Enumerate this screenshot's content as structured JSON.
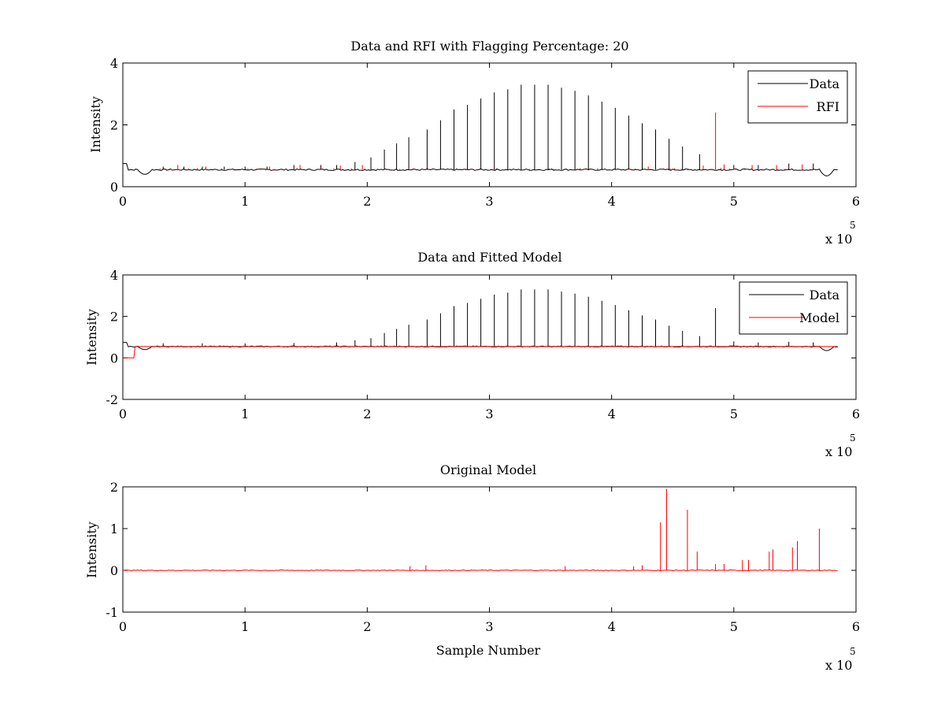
{
  "chart_data": [
    {
      "type": "line",
      "title": "Data and RFI with Flagging Percentage: 20",
      "xlabel": "",
      "ylabel": "Intensity",
      "xlim": [
        0,
        600000
      ],
      "ylim": [
        0,
        4
      ],
      "xticks": [
        "0",
        "1",
        "2",
        "3",
        "4",
        "5",
        "6"
      ],
      "yticks": [
        "0",
        "2",
        "4"
      ],
      "x_multiplier_label": "x 10",
      "x_multiplier_exp": "5",
      "legend": [
        {
          "name": "Data",
          "color": "#000000"
        },
        {
          "name": "RFI",
          "color": "#ff0000"
        }
      ],
      "legend_position": "top-right",
      "baseline": 0.55,
      "x_end": 585000,
      "series": [
        {
          "name": "Data",
          "color": "#000000",
          "spikes": [
            {
              "x": 203000,
              "y": 0.95
            },
            {
              "x": 214000,
              "y": 1.2
            },
            {
              "x": 224000,
              "y": 1.4
            },
            {
              "x": 234000,
              "y": 1.6
            },
            {
              "x": 249000,
              "y": 1.85
            },
            {
              "x": 260000,
              "y": 2.15
            },
            {
              "x": 271000,
              "y": 2.5
            },
            {
              "x": 282000,
              "y": 2.65
            },
            {
              "x": 293000,
              "y": 2.85
            },
            {
              "x": 304000,
              "y": 3.05
            },
            {
              "x": 315000,
              "y": 3.15
            },
            {
              "x": 326000,
              "y": 3.3
            },
            {
              "x": 337000,
              "y": 3.3
            },
            {
              "x": 348000,
              "y": 3.3
            },
            {
              "x": 359000,
              "y": 3.2
            },
            {
              "x": 370000,
              "y": 3.1
            },
            {
              "x": 381000,
              "y": 2.95
            },
            {
              "x": 392000,
              "y": 2.75
            },
            {
              "x": 403000,
              "y": 2.55
            },
            {
              "x": 414000,
              "y": 2.3
            },
            {
              "x": 425000,
              "y": 2.05
            },
            {
              "x": 436000,
              "y": 1.85
            },
            {
              "x": 447000,
              "y": 1.55
            },
            {
              "x": 458000,
              "y": 1.3
            },
            {
              "x": 472000,
              "y": 1.05
            },
            {
              "x": 190000,
              "y": 0.8
            },
            {
              "x": 175000,
              "y": 0.7
            },
            {
              "x": 162000,
              "y": 0.7
            },
            {
              "x": 140000,
              "y": 0.7
            },
            {
              "x": 118000,
              "y": 0.65
            },
            {
              "x": 100000,
              "y": 0.65
            },
            {
              "x": 83000,
              "y": 0.65
            },
            {
              "x": 65000,
              "y": 0.65
            },
            {
              "x": 50000,
              "y": 0.65
            },
            {
              "x": 33000,
              "y": 0.65
            },
            {
              "x": 500000,
              "y": 0.7
            },
            {
              "x": 520000,
              "y": 0.7
            },
            {
              "x": 545000,
              "y": 0.75
            },
            {
              "x": 565000,
              "y": 0.75
            }
          ]
        },
        {
          "name": "RFI",
          "color": "#ff0000",
          "spikes": [
            {
              "x": 485000,
              "y": 2.4
            },
            {
              "x": 45000,
              "y": 0.7
            },
            {
              "x": 68000,
              "y": 0.65
            },
            {
              "x": 120000,
              "y": 0.65
            },
            {
              "x": 145000,
              "y": 0.7
            },
            {
              "x": 178000,
              "y": 0.68
            },
            {
              "x": 196000,
              "y": 0.7
            },
            {
              "x": 430000,
              "y": 0.65
            },
            {
              "x": 475000,
              "y": 0.68
            },
            {
              "x": 492000,
              "y": 0.72
            },
            {
              "x": 515000,
              "y": 0.7
            },
            {
              "x": 535000,
              "y": 0.7
            },
            {
              "x": 556000,
              "y": 0.72
            }
          ]
        }
      ]
    },
    {
      "type": "line",
      "title": "Data and Fitted Model",
      "xlabel": "",
      "ylabel": "Intensity",
      "xlim": [
        0,
        600000
      ],
      "ylim": [
        -2,
        4
      ],
      "xticks": [
        "0",
        "1",
        "2",
        "3",
        "4",
        "5",
        "6"
      ],
      "yticks": [
        "-2",
        "0",
        "2",
        "4"
      ],
      "x_multiplier_label": "x 10",
      "x_multiplier_exp": "5",
      "legend": [
        {
          "name": "Data",
          "color": "#000000"
        },
        {
          "name": "Model",
          "color": "#ff0000"
        }
      ],
      "legend_position": "top-right",
      "baseline": 0.55,
      "x_end": 585000,
      "series": [
        {
          "name": "Data",
          "color": "#000000",
          "spikes": [
            {
              "x": 203000,
              "y": 0.95
            },
            {
              "x": 214000,
              "y": 1.2
            },
            {
              "x": 224000,
              "y": 1.4
            },
            {
              "x": 234000,
              "y": 1.6
            },
            {
              "x": 249000,
              "y": 1.85
            },
            {
              "x": 260000,
              "y": 2.15
            },
            {
              "x": 271000,
              "y": 2.5
            },
            {
              "x": 282000,
              "y": 2.65
            },
            {
              "x": 293000,
              "y": 2.85
            },
            {
              "x": 304000,
              "y": 3.05
            },
            {
              "x": 315000,
              "y": 3.15
            },
            {
              "x": 326000,
              "y": 3.3
            },
            {
              "x": 337000,
              "y": 3.3
            },
            {
              "x": 348000,
              "y": 3.3
            },
            {
              "x": 359000,
              "y": 3.2
            },
            {
              "x": 370000,
              "y": 3.1
            },
            {
              "x": 381000,
              "y": 2.95
            },
            {
              "x": 392000,
              "y": 2.75
            },
            {
              "x": 403000,
              "y": 2.55
            },
            {
              "x": 414000,
              "y": 2.3
            },
            {
              "x": 425000,
              "y": 2.05
            },
            {
              "x": 436000,
              "y": 1.85
            },
            {
              "x": 447000,
              "y": 1.55
            },
            {
              "x": 458000,
              "y": 1.3
            },
            {
              "x": 472000,
              "y": 1.05
            },
            {
              "x": 485000,
              "y": 2.4
            },
            {
              "x": 190000,
              "y": 0.85
            },
            {
              "x": 175000,
              "y": 0.75
            },
            {
              "x": 140000,
              "y": 0.72
            },
            {
              "x": 100000,
              "y": 0.7
            },
            {
              "x": 65000,
              "y": 0.7
            },
            {
              "x": 33000,
              "y": 0.7
            },
            {
              "x": 500000,
              "y": 0.8
            },
            {
              "x": 520000,
              "y": 0.75
            },
            {
              "x": 545000,
              "y": 0.78
            },
            {
              "x": 565000,
              "y": 0.75
            }
          ]
        },
        {
          "name": "Model",
          "color": "#ff0000",
          "spikes": []
        }
      ]
    },
    {
      "type": "line",
      "title": "Original Model",
      "xlabel": "Sample Number",
      "ylabel": "Intensity",
      "xlim": [
        0,
        600000
      ],
      "ylim": [
        -1,
        2
      ],
      "xticks": [
        "0",
        "1",
        "2",
        "3",
        "4",
        "5",
        "6"
      ],
      "yticks": [
        "-1",
        "0",
        "1",
        "2"
      ],
      "x_multiplier_label": "x 10",
      "x_multiplier_exp": "5",
      "legend": [],
      "baseline": 0.0,
      "x_end": 585000,
      "series": [
        {
          "name": "Model",
          "color": "#ff0000",
          "spikes": [
            {
              "x": 440000,
              "y": 1.15
            },
            {
              "x": 445000,
              "y": 1.95
            },
            {
              "x": 462000,
              "y": 1.45
            },
            {
              "x": 470000,
              "y": 0.45
            },
            {
              "x": 485000,
              "y": 0.15
            },
            {
              "x": 492000,
              "y": 0.15
            },
            {
              "x": 507000,
              "y": 0.25
            },
            {
              "x": 512000,
              "y": 0.25
            },
            {
              "x": 529000,
              "y": 0.45
            },
            {
              "x": 532000,
              "y": 0.5
            },
            {
              "x": 548000,
              "y": 0.55
            },
            {
              "x": 552000,
              "y": 0.7
            },
            {
              "x": 570000,
              "y": 1.0
            },
            {
              "x": 235000,
              "y": 0.1
            },
            {
              "x": 248000,
              "y": 0.12
            },
            {
              "x": 362000,
              "y": 0.1
            },
            {
              "x": 418000,
              "y": 0.1
            },
            {
              "x": 425000,
              "y": 0.12
            }
          ]
        }
      ]
    }
  ]
}
